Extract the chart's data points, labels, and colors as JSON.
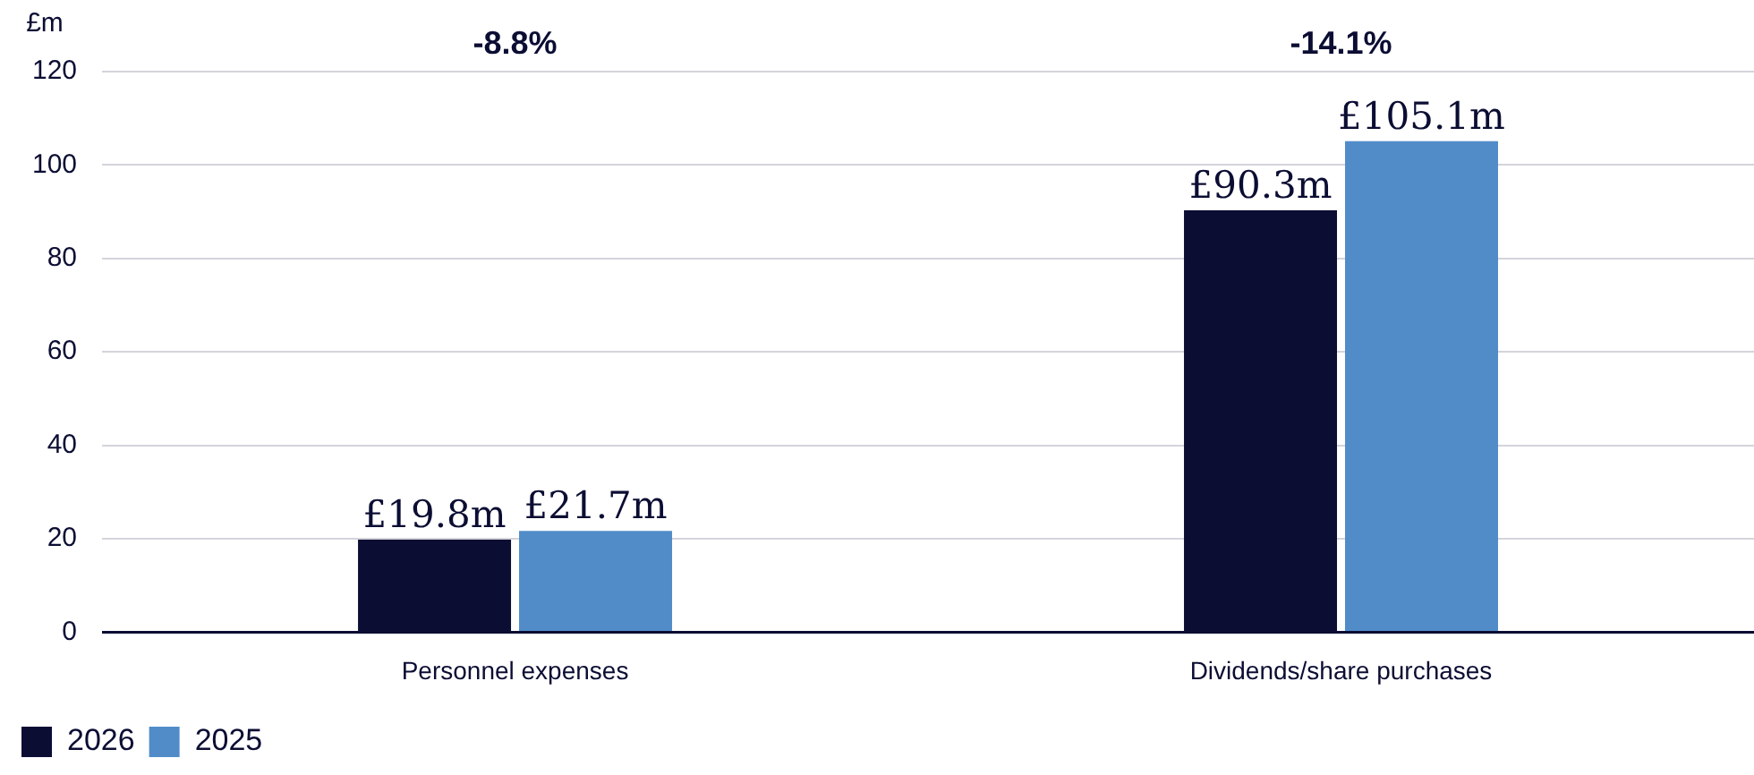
{
  "chart_data": {
    "type": "bar",
    "ylabel": "£m",
    "categories": [
      "Personnel expenses",
      "Dividends/share purchases"
    ],
    "series": [
      {
        "name": "2026",
        "color": "#0b0d33",
        "values": [
          19.8,
          90.3
        ],
        "value_labels": [
          "£19.8m",
          "£90.3m"
        ]
      },
      {
        "name": "2025",
        "color": "#518cc9",
        "values": [
          21.7,
          105.1
        ],
        "value_labels": [
          "£21.7m",
          "£105.1m"
        ]
      }
    ],
    "annotations": [
      "-8.8%",
      "-14.1%"
    ],
    "ylim": [
      0,
      120
    ],
    "yticks": [
      0,
      20,
      40,
      60,
      80,
      100,
      120
    ],
    "grid": "y",
    "legend": "bottom left"
  }
}
